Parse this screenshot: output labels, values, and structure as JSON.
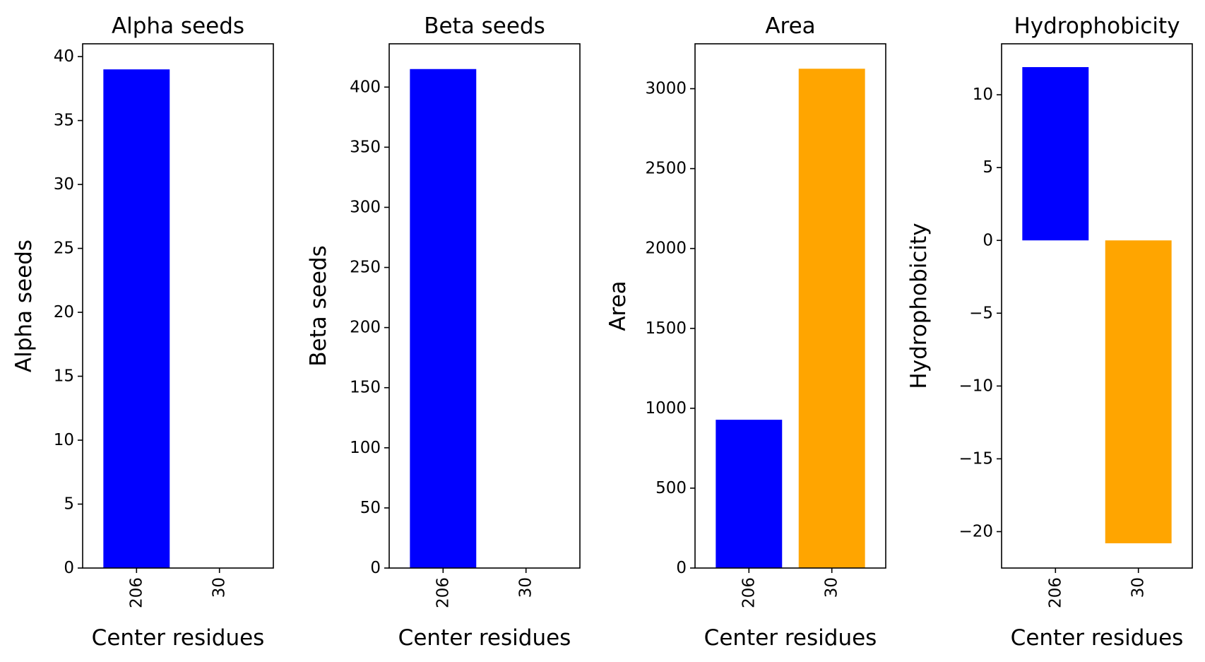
{
  "chart_data": [
    {
      "type": "bar",
      "title": "Alpha seeds",
      "xlabel": "Center residues",
      "ylabel": "Alpha seeds",
      "categories": [
        "206",
        "30"
      ],
      "values": [
        39,
        0
      ],
      "colors": [
        "#0000ff",
        "#ffa500"
      ],
      "ylim": [
        0,
        41
      ],
      "yticks": [
        0,
        5,
        10,
        15,
        20,
        25,
        30,
        35,
        40
      ],
      "yticklabels": [
        "0",
        "5",
        "10",
        "15",
        "20",
        "25",
        "30",
        "35",
        "40"
      ],
      "grid": false,
      "xtick_rotation": 90
    },
    {
      "type": "bar",
      "title": "Beta seeds",
      "xlabel": "Center residues",
      "ylabel": "Beta seeds",
      "categories": [
        "206",
        "30"
      ],
      "values": [
        415,
        0
      ],
      "colors": [
        "#0000ff",
        "#ffa500"
      ],
      "ylim": [
        0,
        436
      ],
      "yticks": [
        0,
        50,
        100,
        150,
        200,
        250,
        300,
        350,
        400
      ],
      "yticklabels": [
        "0",
        "50",
        "100",
        "150",
        "200",
        "250",
        "300",
        "350",
        "400"
      ],
      "grid": false,
      "xtick_rotation": 90
    },
    {
      "type": "bar",
      "title": "Area",
      "xlabel": "Center residues",
      "ylabel": "Area",
      "categories": [
        "206",
        "30"
      ],
      "values": [
        928,
        3125
      ],
      "colors": [
        "#0000ff",
        "#ffa500"
      ],
      "ylim": [
        0,
        3281
      ],
      "yticks": [
        0,
        500,
        1000,
        1500,
        2000,
        2500,
        3000
      ],
      "yticklabels": [
        "0",
        "500",
        "1000",
        "1500",
        "2000",
        "2500",
        "3000"
      ],
      "grid": false,
      "xtick_rotation": 90
    },
    {
      "type": "bar",
      "title": "Hydrophobicity",
      "xlabel": "Center residues",
      "ylabel": "Hydrophobicity",
      "categories": [
        "206",
        "30"
      ],
      "values": [
        11.9,
        -20.8
      ],
      "colors": [
        "#0000ff",
        "#ffa500"
      ],
      "ylim": [
        -22.5,
        13.5
      ],
      "yticks": [
        -20,
        -15,
        -10,
        -5,
        0,
        5,
        10
      ],
      "yticklabels": [
        "−20",
        "−15",
        "−10",
        "−5",
        "0",
        "5",
        "10"
      ],
      "grid": false,
      "xtick_rotation": 90
    }
  ]
}
